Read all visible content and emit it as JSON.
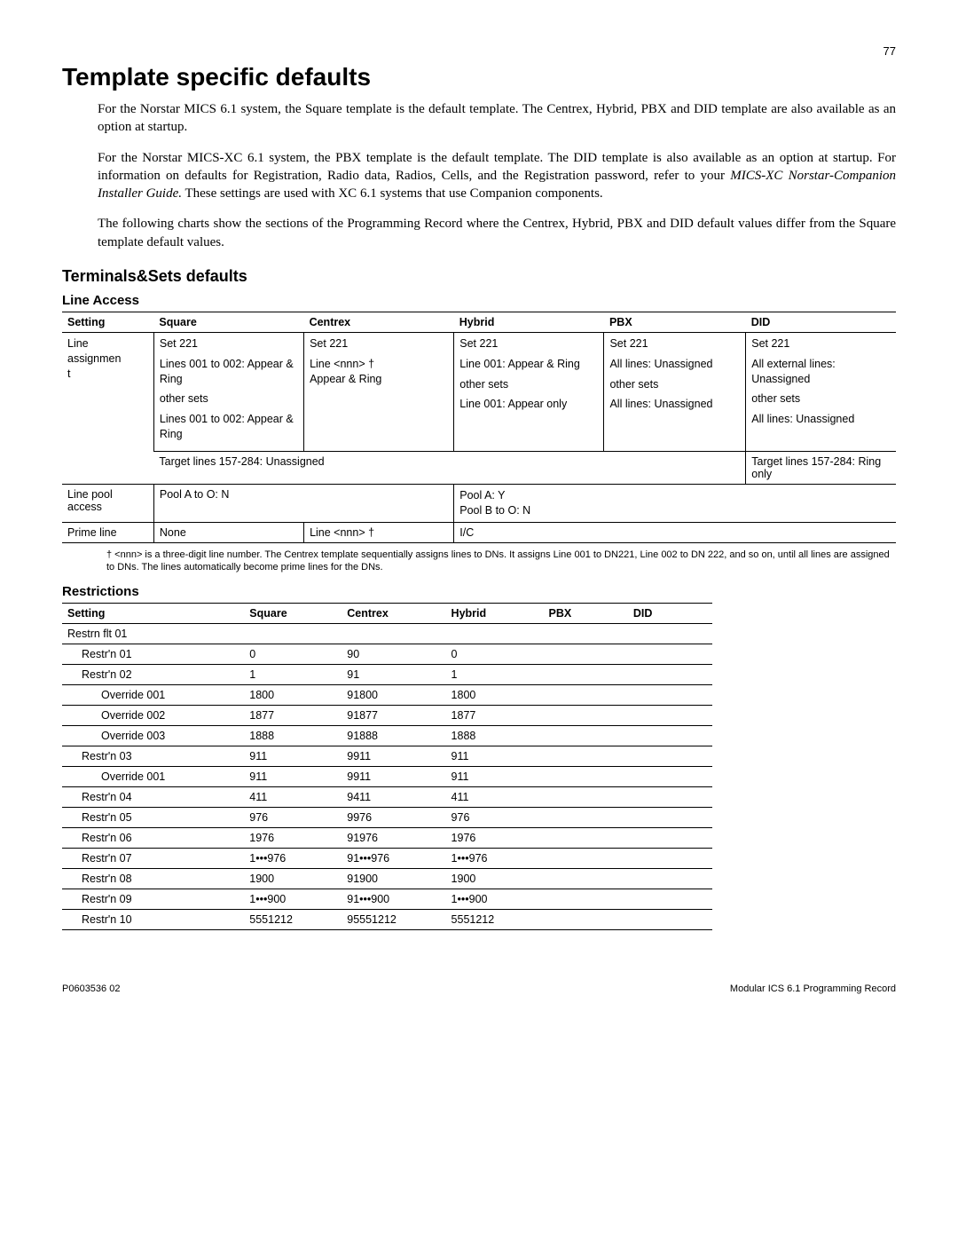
{
  "page_number": "77",
  "title": "Template specific defaults",
  "paragraphs": {
    "p1": "For the Norstar MICS 6.1 system, the Square template is the default template. The Centrex, Hybrid, PBX and DID template are also available as an option at startup.",
    "p2a": "For the Norstar MICS-XC 6.1 system, the PBX template is the default template. The DID template is also available as an option at startup. For information on defaults for Registration, Radio data, Radios, Cells, and the Registration password, refer to your ",
    "p2i": "MICS-XC Norstar-Companion Installer Guide.",
    "p2b": " These settings are used with XC 6.1 systems that use Companion components.",
    "p3": "The following charts show the sections of the Programming Record where the Centrex, Hybrid, PBX and DID default values differ from the Square template default values."
  },
  "section_terminals": "Terminals&Sets defaults",
  "line_access": {
    "heading": "Line Access",
    "columns": [
      "Setting",
      "Square",
      "Centrex",
      "Hybrid",
      "PBX",
      "DID"
    ],
    "row1_setting_a": "Line",
    "row1_setting_b": "assignmen",
    "row1_setting_c": "t",
    "set221": "Set 221",
    "sq_a": "Lines 001 to 002: Appear & Ring",
    "cx_a": "Line <nnn> †\nAppear & Ring",
    "hy_a": "Line 001: Appear & Ring",
    "pb_a": "All lines: Unassigned",
    "di_a": "All external lines: Unassigned",
    "other_sets": "other sets",
    "sq_b": "Lines 001 to 002: Appear & Ring",
    "hy_b": "Line 001: Appear only",
    "pb_b": "All lines: Unassigned",
    "di_b": "All lines: Unassigned",
    "target_un": "Target lines 157-284: Unassigned",
    "target_ro": "Target lines 157-284: Ring only",
    "lp_setting": "Line pool access",
    "lp_sq": "Pool A to O: N",
    "lp_hy_a": "Pool A: Y",
    "lp_hy_b": "Pool B to O: N",
    "pl_setting": "Prime line",
    "pl_sq": "None",
    "pl_cx": "Line <nnn> †",
    "pl_hy": "I/C"
  },
  "footnote": "† <nnn> is a three-digit line number. The Centrex template sequentially assigns lines to DNs. It assigns Line 001 to DN221, Line 002 to DN 222, and so on, until all lines are assigned to DNs. The lines automatically become prime lines for the DNs.",
  "restrictions": {
    "heading": "Restrictions",
    "columns": [
      "Setting",
      "Square",
      "Centrex",
      "Hybrid",
      "PBX",
      "DID"
    ],
    "groups": [
      {
        "label": "Restrn flt 01",
        "rows": [
          {
            "label": "Restr'n 01",
            "indent": 1,
            "sq": "0",
            "cx": "90",
            "hy": "0"
          }
        ]
      },
      {
        "rows": [
          {
            "label": "Restr'n 02",
            "indent": 1,
            "sq": "1",
            "cx": "91",
            "hy": "1"
          },
          {
            "label": "Override 001",
            "indent": 2,
            "sq": "1800",
            "cx": "91800",
            "hy": "1800"
          },
          {
            "label": "Override 002",
            "indent": 2,
            "sq": "1877",
            "cx": "91877",
            "hy": "1877"
          },
          {
            "label": "Override 003",
            "indent": 2,
            "sq": "1888",
            "cx": "91888",
            "hy": "1888"
          }
        ]
      },
      {
        "rows": [
          {
            "label": "Restr'n 03",
            "indent": 1,
            "sq": "911",
            "cx": "9911",
            "hy": "911"
          },
          {
            "label": "Override 001",
            "indent": 2,
            "sq": "911",
            "cx": "9911",
            "hy": "911"
          }
        ]
      },
      {
        "rows": [
          {
            "label": "Restr'n 04",
            "indent": 1,
            "sq": "411",
            "cx": "9411",
            "hy": "411"
          }
        ]
      },
      {
        "rows": [
          {
            "label": "Restr'n 05",
            "indent": 1,
            "sq": "976",
            "cx": "9976",
            "hy": "976"
          }
        ]
      },
      {
        "rows": [
          {
            "label": "Restr'n 06",
            "indent": 1,
            "sq": "1976",
            "cx": "91976",
            "hy": "1976"
          }
        ]
      },
      {
        "rows": [
          {
            "label": "Restr'n 07",
            "indent": 1,
            "sq": "1•••976",
            "cx": "91•••976",
            "hy": "1•••976"
          }
        ]
      },
      {
        "rows": [
          {
            "label": "Restr'n 08",
            "indent": 1,
            "sq": "1900",
            "cx": "91900",
            "hy": "1900"
          }
        ]
      },
      {
        "rows": [
          {
            "label": "Restr'n 09",
            "indent": 1,
            "sq": "1•••900",
            "cx": "91•••900",
            "hy": "1•••900"
          }
        ]
      },
      {
        "rows": [
          {
            "label": "Restr'n 10",
            "indent": 1,
            "sq": "5551212",
            "cx": "95551212",
            "hy": "5551212"
          }
        ]
      }
    ]
  },
  "footer_left": "P0603536  02",
  "footer_right": "Modular ICS 6.1 Programming Record"
}
